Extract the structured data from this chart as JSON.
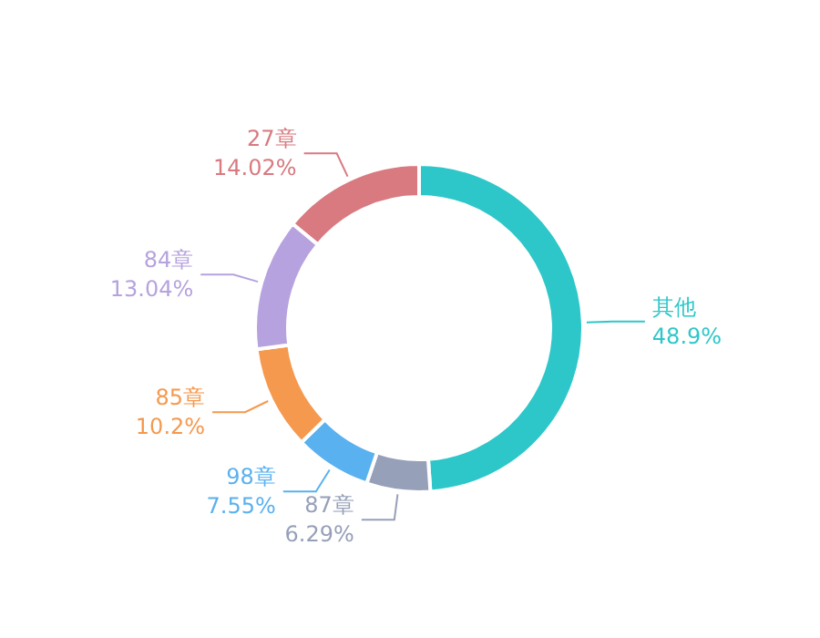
{
  "chart_data": {
    "type": "donut",
    "categories": [
      "其他",
      "87章",
      "98章",
      "85章",
      "84章",
      "27章"
    ],
    "values": [
      48.9,
      6.29,
      7.55,
      10.2,
      13.04,
      14.02
    ],
    "colors": [
      "#2ec7c9",
      "#97a0b9",
      "#5ab1ef",
      "#f5994e",
      "#b6a2de",
      "#d87a80"
    ],
    "value_labels": [
      "48.9%",
      "6.29%",
      "7.55%",
      "10.2%",
      "13.04%",
      "14.02%"
    ]
  }
}
